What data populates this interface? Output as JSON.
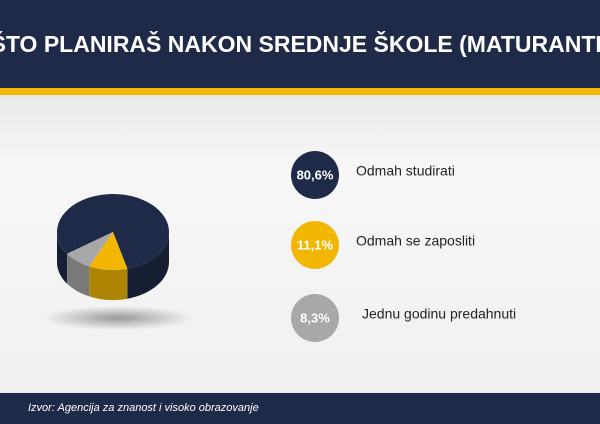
{
  "chart_data": {
    "type": "pie",
    "title": "ŠTO PLANIRAŠ NAKON SREDNJE ŠKOLE (MATURANTI)",
    "categories": [
      "Odmah studirati",
      "Odmah se zaposliti",
      "Jednu godinu predahnuti"
    ],
    "values": [
      80.6,
      11.1,
      8.3
    ],
    "value_labels": [
      "80,6%",
      "11,1%",
      "8,3%"
    ],
    "colors": [
      "#1f2a48",
      "#f2b705",
      "#a8a8a8"
    ],
    "source": "Izvor: Agencija za znanost i visoko obrazovanje"
  }
}
